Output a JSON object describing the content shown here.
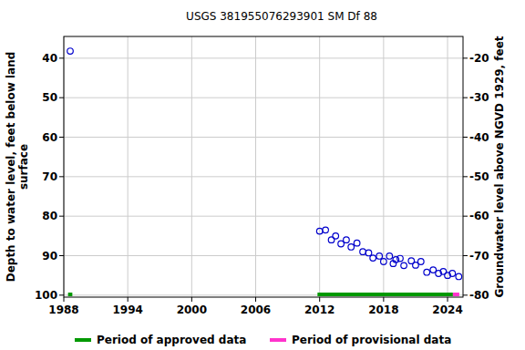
{
  "chart_data": {
    "type": "scatter",
    "title": "USGS 381955076293901 SM Df  88",
    "ylabel": "Depth to water level, feet below land\nsurface",
    "y2label": "Groundwater level above NGVD 1929, feet",
    "x": [
      1988.6,
      2012.0,
      2012.55,
      2013.1,
      2013.5,
      2014.0,
      2014.5,
      2014.95,
      2015.5,
      2016.05,
      2016.6,
      2017.0,
      2017.6,
      2018.0,
      2018.55,
      2018.9,
      2019.15,
      2019.55,
      2019.9,
      2020.6,
      2021.0,
      2021.5,
      2022.05,
      2022.65,
      2023.15,
      2023.6,
      2024.0,
      2024.45,
      2025.05
    ],
    "series": [
      {
        "color": "#0000cc",
        "marker": "circle-open",
        "values": [
          38.2,
          83.8,
          83.5,
          86.0,
          85.0,
          87.0,
          86.0,
          87.8,
          86.8,
          89.0,
          89.3,
          90.6,
          90.1,
          91.5,
          90.1,
          92.0,
          91.0,
          90.7,
          92.5,
          91.3,
          92.4,
          91.5,
          94.2,
          93.6,
          94.5,
          94.0,
          95.0,
          94.5,
          95.3
        ]
      }
    ],
    "periods": [
      {
        "name": "Period of approved data",
        "color": "#009900",
        "ranges": [
          [
            1988.4,
            1988.8
          ],
          [
            2011.8,
            2024.5
          ]
        ]
      },
      {
        "name": "Period of provisional data",
        "color": "#ff33cc",
        "ranges": [
          [
            2024.5,
            2025.1
          ]
        ]
      }
    ],
    "xlim": [
      1988,
      2025.45
    ],
    "xticks": [
      1988,
      1994,
      2000,
      2006,
      2012,
      2018,
      2024
    ],
    "ylim": [
      100.5,
      34.5
    ],
    "yticks": [
      40,
      50,
      60,
      70,
      80,
      90,
      100
    ],
    "y2lim": [
      -80.5,
      -14.5
    ],
    "y2ticks": [
      -20,
      -30,
      -40,
      -50,
      -60,
      -70,
      -80
    ],
    "grid": true,
    "legend": "bottom"
  }
}
